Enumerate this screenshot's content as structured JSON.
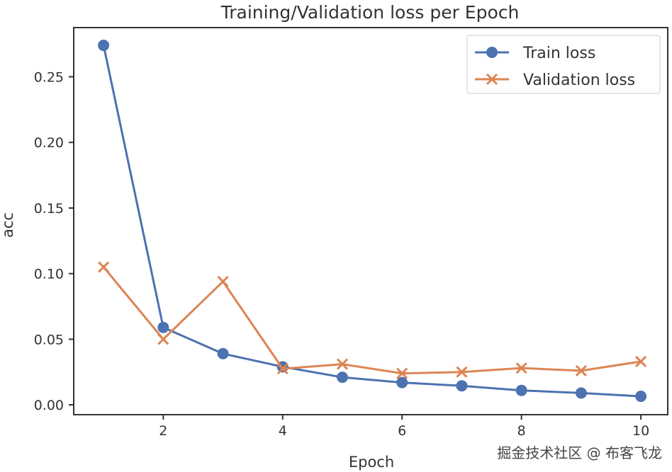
{
  "chart_data": {
    "type": "line",
    "title": "Training/Validation loss per Epoch",
    "xlabel": "Epoch",
    "ylabel": "acc",
    "x": [
      1,
      2,
      3,
      4,
      5,
      6,
      7,
      8,
      9,
      10
    ],
    "series": [
      {
        "name": "Train loss",
        "marker": "circle",
        "color": "#4c72b0",
        "values": [
          0.274,
          0.059,
          0.039,
          0.029,
          0.021,
          0.017,
          0.0145,
          0.011,
          0.009,
          0.0065
        ]
      },
      {
        "name": "Validation loss",
        "marker": "x",
        "color": "#dd8452",
        "values": [
          0.105,
          0.05,
          0.094,
          0.0275,
          0.031,
          0.024,
          0.025,
          0.028,
          0.026,
          0.033
        ]
      }
    ],
    "xticks": [
      2,
      4,
      6,
      8,
      10
    ],
    "yticks": [
      "0.00",
      "0.05",
      "0.10",
      "0.15",
      "0.20",
      "0.25"
    ],
    "xlim": [
      0.5,
      10.45
    ],
    "ylim": [
      -0.0075,
      0.2875
    ],
    "grid": false,
    "legend": "top-right"
  },
  "watermark": "掘金技术社区 @ 布客飞龙"
}
